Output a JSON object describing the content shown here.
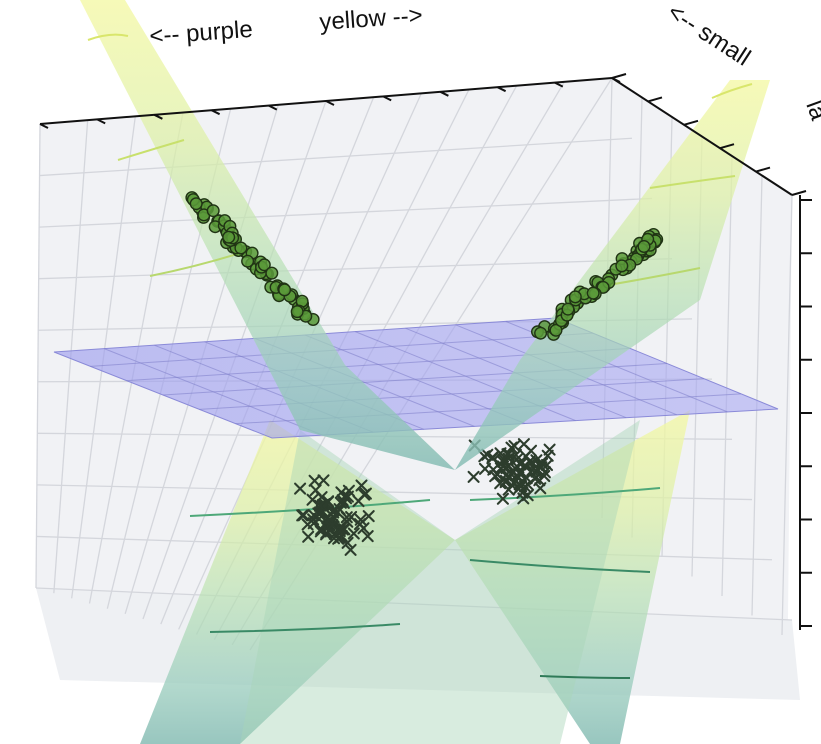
{
  "axis_labels": {
    "purple_hint": "<-- purple",
    "yellow_hint": "yellow -->",
    "small_hint": "<-- small",
    "large_hint_fragment": "la"
  },
  "chart_data": {
    "type": "scatter",
    "projection": "3d",
    "title": "",
    "series": [
      {
        "marker": "circle",
        "color": "#5a9a3a",
        "count": 140
      },
      {
        "marker": "x",
        "color": "#2d3d2d",
        "count": 150
      }
    ],
    "surfaces": [
      {
        "kind": "cone",
        "colormap": "yellow-to-teal"
      },
      {
        "kind": "plane",
        "color": "#8c8ce6"
      }
    ],
    "grid": true
  }
}
